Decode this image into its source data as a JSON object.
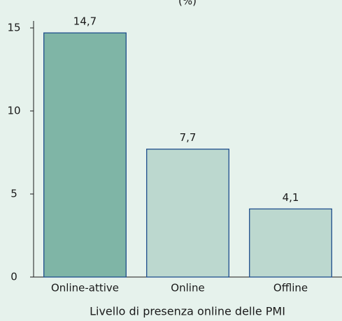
{
  "chart_data": {
    "type": "bar",
    "unit_label": "(%)",
    "x_label": "Livello di presenza online delle PMI",
    "categories": [
      "Online-attive",
      "Online",
      "Offline"
    ],
    "values": [
      14.7,
      7.7,
      4.1
    ],
    "value_labels": [
      "14,7",
      "7,7",
      "4,1"
    ],
    "colors": [
      "#7fb5a6",
      "#bcd8cf",
      "#bcd8cf"
    ],
    "edge_color": "#1f4e8c",
    "ylim": [
      0,
      15
    ],
    "yticks": [
      0,
      5,
      10,
      15
    ],
    "grid": false
  }
}
